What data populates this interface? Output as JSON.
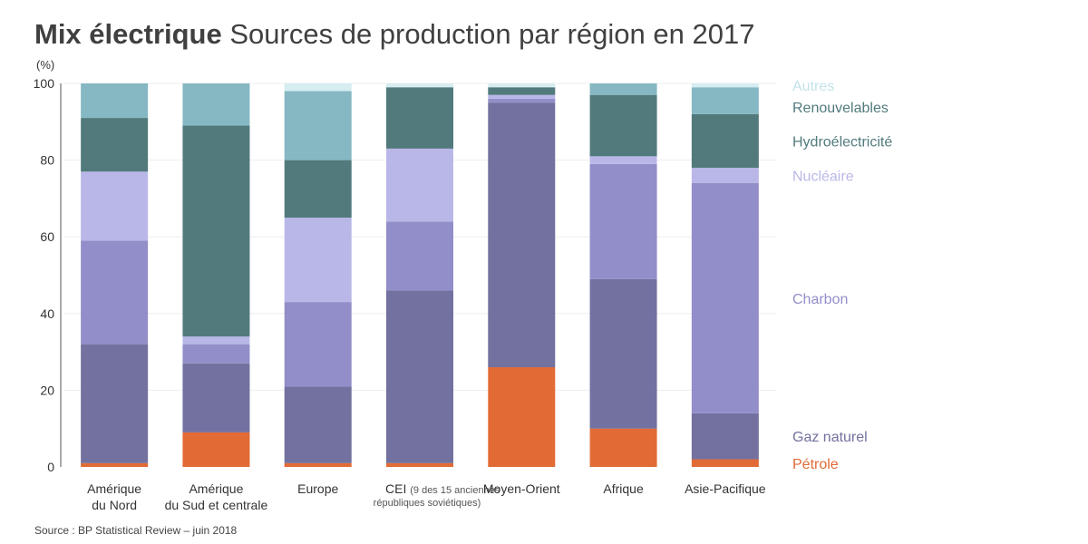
{
  "header": {
    "title_bold": "Mix électrique",
    "title_rest": "Sources de production par région en 2017"
  },
  "footer": {
    "source": "Source : BP Statistical Review – juin 2018"
  },
  "chart_data": {
    "type": "bar",
    "stacked": true,
    "title": "Mix électrique Sources de production par région en 2017",
    "ylabel": "(%)",
    "ylim": [
      0,
      100
    ],
    "yticks": [
      0,
      20,
      40,
      60,
      80,
      100
    ],
    "categories": [
      {
        "line1": "Amérique",
        "line2": "du Nord",
        "note": ""
      },
      {
        "line1": "Amérique",
        "line2": "du Sud et centrale",
        "note": ""
      },
      {
        "line1": "Europe",
        "line2": "",
        "note": ""
      },
      {
        "line1": "CEI",
        "line2": "républiques soviétiques)",
        "note": "(9 des 15 anciennes"
      },
      {
        "line1": "Moyen-Orient",
        "line2": "",
        "note": ""
      },
      {
        "line1": "Afrique",
        "line2": "",
        "note": ""
      },
      {
        "line1": "Asie-Pacifique",
        "line2": "",
        "note": ""
      }
    ],
    "series": [
      {
        "name": "Pétrole",
        "color": "#e26a35",
        "values": [
          1,
          9,
          1,
          1,
          26,
          10,
          2
        ]
      },
      {
        "name": "Gaz naturel",
        "color": "#72719f",
        "values": [
          31,
          18,
          20,
          45,
          69,
          39,
          12
        ]
      },
      {
        "name": "Charbon",
        "color": "#928ec9",
        "values": [
          27,
          5,
          22,
          18,
          1,
          30,
          60
        ]
      },
      {
        "name": "Nucléaire",
        "color": "#b9b7e8",
        "values": [
          18,
          2,
          22,
          19,
          1,
          2,
          4
        ]
      },
      {
        "name": "Hydroélectricité",
        "color": "#527a7d",
        "values": [
          14,
          55,
          15,
          16,
          2,
          16,
          14
        ]
      },
      {
        "name": "Renouvelables",
        "color": "#85b8c3",
        "values": [
          9,
          11,
          18,
          0,
          0,
          3,
          7
        ]
      },
      {
        "name": "Autres",
        "color": "#d6edf2",
        "values": [
          0,
          0,
          2,
          1,
          1,
          0,
          1
        ]
      }
    ],
    "legend": [
      {
        "name": "Autres",
        "color": "#c4e3ea"
      },
      {
        "name": "Renouvelables",
        "color": "#527a7d"
      },
      {
        "name": "Hydroélectricité",
        "color": "#527a7d"
      },
      {
        "name": "Nucléaire",
        "color": "#b9b7e8"
      },
      {
        "name": "Charbon",
        "color": "#928ec9"
      },
      {
        "name": "Gaz naturel",
        "color": "#72719f"
      },
      {
        "name": "Pétrole",
        "color": "#e26a35"
      }
    ]
  }
}
